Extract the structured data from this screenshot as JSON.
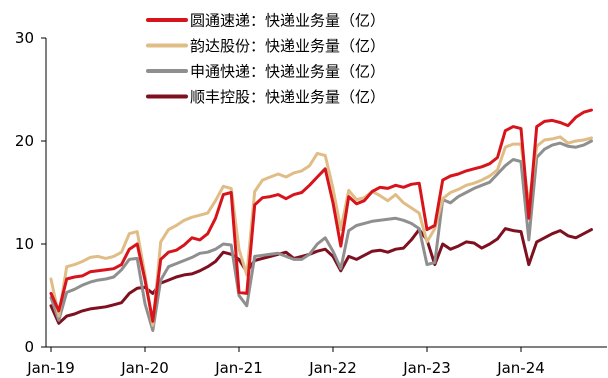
{
  "chart_data": {
    "type": "line",
    "title": "",
    "xlabel": "",
    "ylabel": "",
    "ylim": [
      0,
      30
    ],
    "y_ticks": [
      "0",
      "10",
      "20",
      "30"
    ],
    "x_tick_labels": [
      "Jan-19",
      "Jan-20",
      "Jan-21",
      "Jan-22",
      "Jan-23",
      "Jan-24"
    ],
    "legend_position": "top-center",
    "grid": false,
    "start": "2019-01",
    "series": [
      {
        "name": "圆通速递：快递业务量（亿）",
        "color": "#d7141b",
        "values": [
          5.2,
          3.5,
          6.6,
          6.8,
          6.9,
          7.3,
          7.4,
          7.5,
          7.6,
          8.0,
          9.5,
          10.0,
          6.5,
          2.5,
          8.5,
          9.2,
          9.4,
          9.9,
          10.6,
          10.4,
          11.0,
          12.5,
          14.8,
          15.0,
          5.3,
          5.2,
          13.8,
          14.5,
          14.6,
          14.8,
          14.4,
          14.8,
          15.0,
          15.7,
          16.5,
          17.3,
          14.0,
          9.8,
          14.6,
          13.9,
          14.2,
          15.1,
          15.5,
          15.4,
          15.7,
          15.5,
          15.8,
          15.9,
          11.4,
          11.8,
          16.2,
          16.6,
          16.8,
          17.1,
          17.3,
          17.5,
          17.8,
          18.4,
          21.0,
          21.4,
          21.2,
          12.5,
          21.4,
          21.9,
          22.0,
          21.8,
          21.5,
          22.3,
          22.8,
          23.0
        ]
      },
      {
        "name": "韵达股份：快递业务量（亿）",
        "color": "#e0bd86",
        "values": [
          6.6,
          3.0,
          7.8,
          8.0,
          8.3,
          8.7,
          8.8,
          8.6,
          8.8,
          9.2,
          11.0,
          11.2,
          7.0,
          2.1,
          10.2,
          11.4,
          11.8,
          12.3,
          12.6,
          12.8,
          13.0,
          14.2,
          15.6,
          15.4,
          9.5,
          7.0,
          15.1,
          16.2,
          16.5,
          16.8,
          16.5,
          16.9,
          17.1,
          17.6,
          18.8,
          18.6,
          15.4,
          11.4,
          15.2,
          14.3,
          14.5,
          15.1,
          14.7,
          14.2,
          14.8,
          14.0,
          13.5,
          13.0,
          10.2,
          11.5,
          14.4,
          15.0,
          15.3,
          15.7,
          15.9,
          16.2,
          16.6,
          17.2,
          19.4,
          19.7,
          19.7,
          13.8,
          19.5,
          20.1,
          20.2,
          20.4,
          19.8,
          20.0,
          20.1,
          20.3
        ]
      },
      {
        "name": "申通快递：快递业务量（亿）",
        "color": "#8f8f8f",
        "values": [
          4.8,
          2.6,
          5.3,
          5.6,
          6.0,
          6.3,
          6.5,
          6.6,
          6.8,
          7.5,
          8.5,
          8.6,
          4.2,
          1.6,
          6.5,
          7.8,
          8.1,
          8.4,
          8.7,
          9.1,
          9.2,
          9.5,
          10.0,
          9.9,
          5.0,
          4.0,
          8.8,
          8.9,
          9.0,
          9.1,
          8.8,
          8.5,
          8.5,
          9.0,
          10.0,
          10.6,
          9.3,
          7.6,
          11.3,
          11.8,
          12.0,
          12.2,
          12.3,
          12.4,
          12.5,
          12.3,
          12.0,
          11.5,
          8.0,
          8.2,
          14.3,
          14.0,
          14.6,
          15.0,
          15.4,
          15.7,
          16.0,
          16.8,
          17.6,
          18.2,
          18.0,
          10.4,
          18.4,
          19.2,
          19.6,
          19.8,
          19.5,
          19.4,
          19.6,
          20.0
        ]
      },
      {
        "name": "顺丰控股：快递业务量（亿）",
        "color": "#7f1020",
        "values": [
          4.0,
          2.3,
          3.0,
          3.2,
          3.5,
          3.7,
          3.8,
          3.9,
          4.1,
          4.3,
          5.2,
          5.7,
          5.8,
          5.2,
          6.2,
          6.5,
          6.8,
          7.0,
          7.1,
          7.4,
          7.8,
          8.3,
          9.2,
          9.0,
          8.5,
          7.3,
          8.4,
          8.6,
          8.8,
          9.0,
          9.2,
          8.6,
          8.8,
          9.0,
          9.3,
          9.5,
          8.8,
          7.4,
          8.8,
          8.5,
          8.9,
          9.3,
          9.4,
          9.2,
          9.5,
          9.6,
          10.4,
          11.4,
          10.4,
          8.0,
          10.0,
          9.5,
          9.8,
          10.2,
          10.1,
          9.6,
          10.0,
          10.5,
          11.5,
          11.3,
          11.2,
          8.0,
          10.2,
          10.6,
          11.0,
          11.3,
          10.8,
          10.6,
          11.0,
          11.4
        ]
      }
    ]
  }
}
